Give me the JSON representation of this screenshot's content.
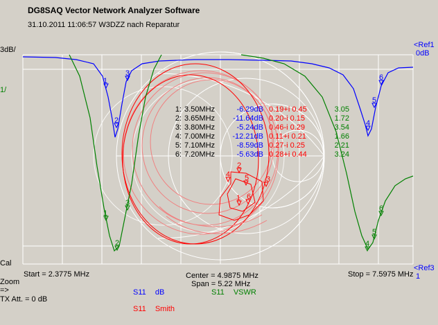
{
  "window": {
    "title": "DG8SAQ Vector Network Analyzer Software",
    "subtitle": "31.10.2011     11:06:57     W3DZZ nach Reparatur"
  },
  "left_scale": {
    "top": "3dB/",
    "second": "1/",
    "cal": "Cal",
    "zoom": "Zoom",
    "zoom_arrow": "=>",
    "tx_att": "TX Att.  = 0 dB"
  },
  "right_scale": {
    "ref1": "<Ref1",
    "ref1_value": "0dB",
    "ref3": "<Ref3",
    "ref3_value": "1"
  },
  "sweep": {
    "start": "Start = 2.3775 MHz",
    "center": "Center = 4.9875 MHz",
    "span": "Span = 5.22 MHz",
    "stop": "Stop = 7.5975 MHz"
  },
  "traces_legend": [
    {
      "param": "S11",
      "mode": "dB",
      "color": "#0000ff"
    },
    {
      "param": "S11",
      "mode": "VSWR",
      "color": "#008000"
    },
    {
      "param": "S11",
      "mode": "Smith",
      "color": "#ff0000"
    }
  ],
  "markers": [
    {
      "idx": "1:",
      "freq": "3.50MHz",
      "db": "-6.29dB",
      "z": "0.19+i 0.45",
      "vswr": "3.05"
    },
    {
      "idx": "2:",
      "freq": "3.65MHz",
      "db": "-11.64dB",
      "z": "0.20-i 0.15",
      "vswr": "1.72"
    },
    {
      "idx": "3:",
      "freq": "3.80MHz",
      "db": "-5.24dB",
      "z": "0.46-i 0.29",
      "vswr": "3.54"
    },
    {
      "idx": "4:",
      "freq": "7.00MHz",
      "db": "-12.21dB",
      "z": "0.11+i 0.21",
      "vswr": "1.66"
    },
    {
      "idx": "5:",
      "freq": "7.10MHz",
      "db": "-8.59dB",
      "z": "0.27-i 0.25",
      "vswr": "2.21"
    },
    {
      "idx": "6:",
      "freq": "7.20MHz",
      "db": "-5.63dB",
      "z": "0.28+i 0.44",
      "vswr": "3.24"
    }
  ],
  "marker_labels": [
    "1",
    "2",
    "3",
    "4",
    "5",
    "6"
  ],
  "colors": {
    "background": "#d4d0c8",
    "grid": "#ffffff",
    "db_trace": "#0000ff",
    "vswr_trace": "#008000",
    "smith_trace": "#ff0000",
    "smith_trace_light": "#f08080"
  }
}
